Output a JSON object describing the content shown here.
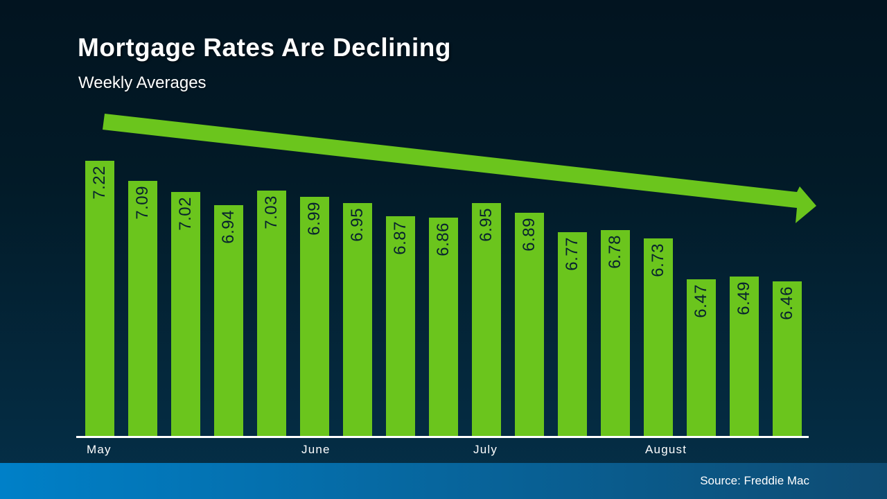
{
  "slide": {
    "title": "Mortgage Rates Are Declining",
    "subtitle": "Weekly Averages",
    "source": "Source: Freddie Mac"
  },
  "colors": {
    "bar_green": "#6bc51d",
    "arrow_green": "#6bc51d",
    "bar_label_text": "#07222e",
    "axis_line": "#ffffff",
    "footer_left": "#0080c8",
    "footer_right": "#0e4b72",
    "background_top": "#021420",
    "background_bottom": "#053049",
    "title_text": "#ffffff"
  },
  "chart_data": {
    "type": "bar",
    "title": "Mortgage Rates Are Declining",
    "subtitle": "Weekly Averages",
    "values": [
      7.22,
      7.09,
      7.02,
      6.94,
      7.03,
      6.99,
      6.95,
      6.87,
      6.86,
      6.95,
      6.89,
      6.77,
      6.78,
      6.73,
      6.47,
      6.49,
      6.46
    ],
    "value_label_decimals": 2,
    "month_ticks": [
      {
        "label": "May",
        "bar_index": 0
      },
      {
        "label": "June",
        "bar_index": 5
      },
      {
        "label": "July",
        "bar_index": 9
      },
      {
        "label": "August",
        "bar_index": 13
      }
    ],
    "ylabel": "",
    "xlabel": "",
    "ylim": [
      5.48,
      7.4
    ],
    "y_baseline": 5.48,
    "grid": false,
    "legend": false,
    "annotation": "green declining trend arrow from upper-left to right",
    "source": "Source: Freddie Mac"
  }
}
